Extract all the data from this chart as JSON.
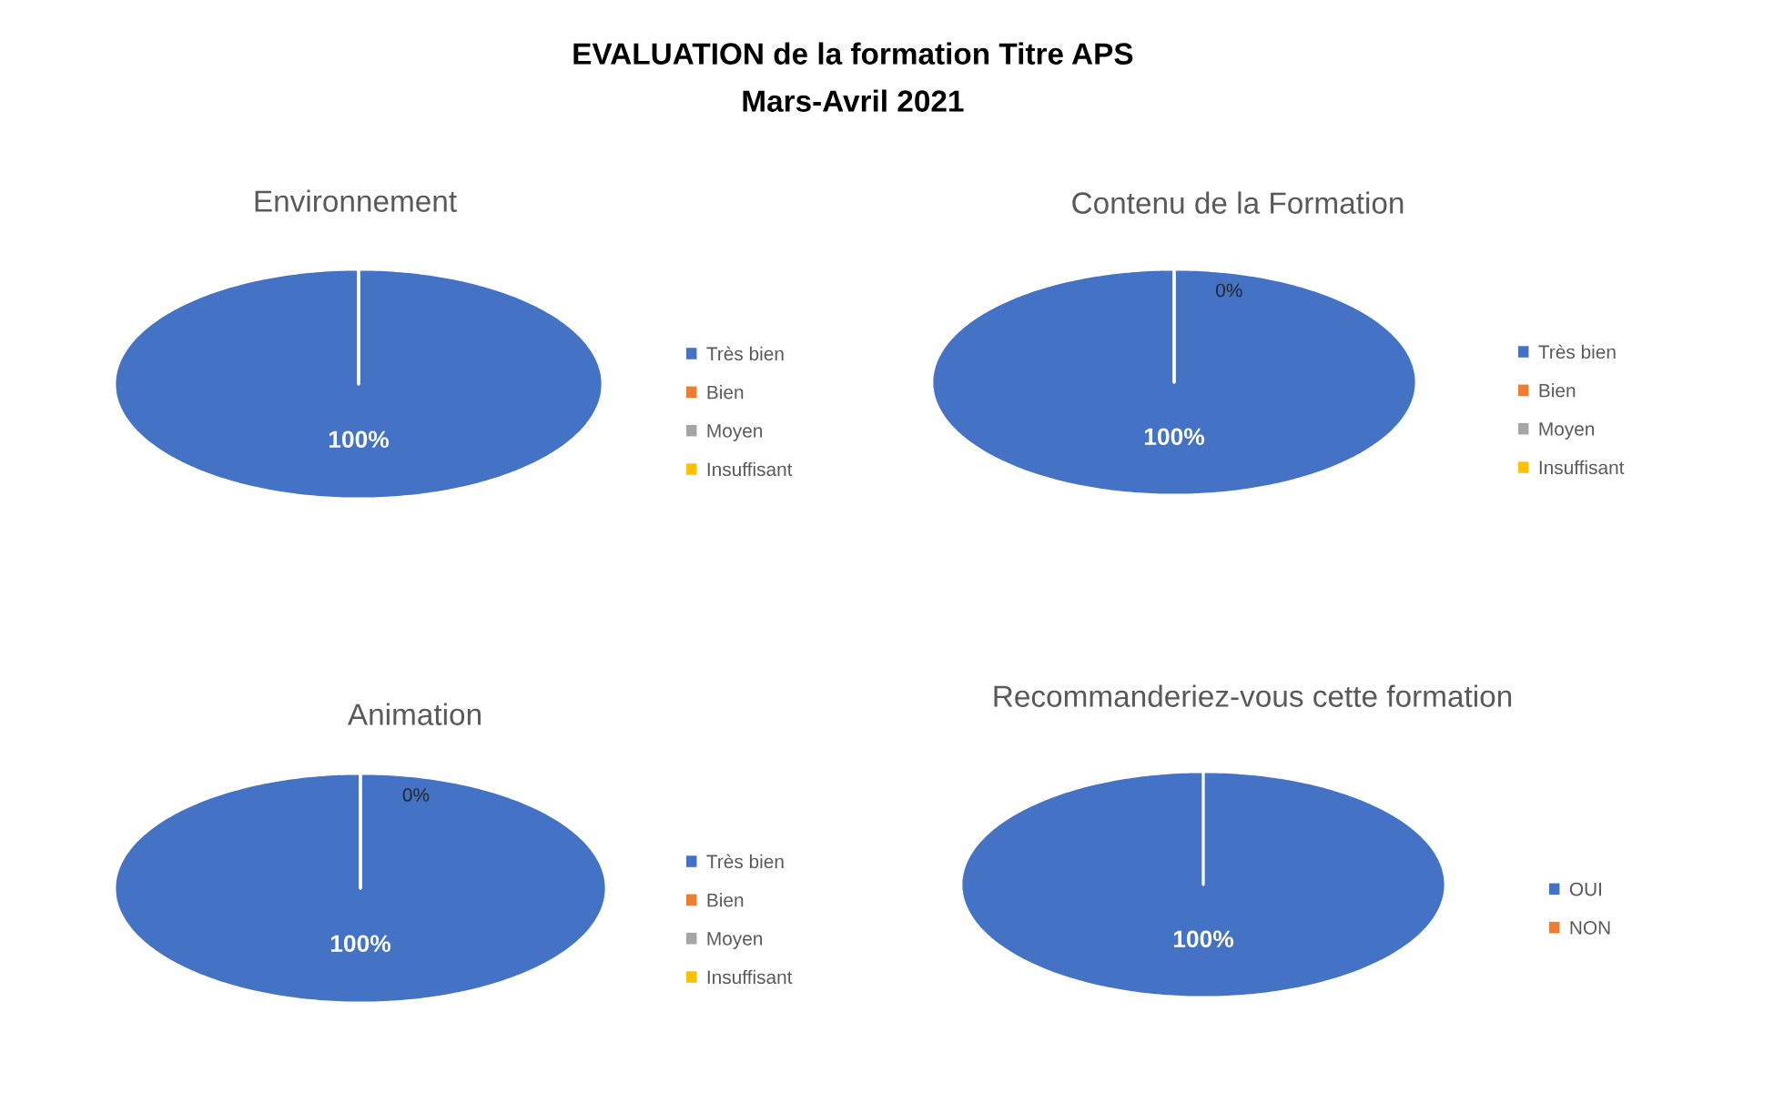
{
  "chart_data": [
    {
      "type": "other",
      "title": "EVALUATION de la formation Titre APS",
      "subtitle": "Mars-Avril 2021"
    },
    {
      "type": "pie",
      "title": "Environnement",
      "categories": [
        "Très bien",
        "Bien",
        "Moyen",
        "Insuffisant"
      ],
      "values": [
        100,
        0,
        0,
        0
      ],
      "colors": [
        "#4472c4",
        "#ed7d31",
        "#a5a5a5",
        "#ffc000"
      ],
      "value_labels": [
        "100%",
        null,
        null,
        null
      ],
      "legend": "right"
    },
    {
      "type": "pie",
      "title": "Contenu de la Formation",
      "categories": [
        "Très bien",
        "Bien",
        "Moyen",
        "Insuffisant"
      ],
      "values": [
        100,
        0,
        0,
        0
      ],
      "colors": [
        "#4472c4",
        "#ed7d31",
        "#a5a5a5",
        "#ffc000"
      ],
      "value_labels": [
        "100%",
        "0%",
        null,
        null
      ],
      "legend": "right"
    },
    {
      "type": "pie",
      "title": "Animation",
      "categories": [
        "Très bien",
        "Bien",
        "Moyen",
        "Insuffisant"
      ],
      "values": [
        100,
        0,
        0,
        0
      ],
      "colors": [
        "#4472c4",
        "#ed7d31",
        "#a5a5a5",
        "#ffc000"
      ],
      "value_labels": [
        "100%",
        "0%",
        null,
        null
      ],
      "legend": "right"
    },
    {
      "type": "pie",
      "title": "Recommanderiez-vous cette formation",
      "categories": [
        "OUI",
        "NON"
      ],
      "values": [
        100,
        0
      ],
      "colors": [
        "#4472c4",
        "#ed7d31"
      ],
      "value_labels": [
        "100%",
        null
      ],
      "legend": "right"
    }
  ]
}
